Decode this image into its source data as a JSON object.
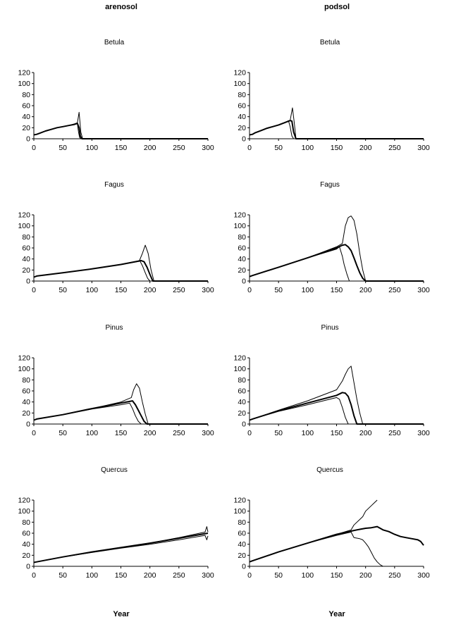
{
  "columns": [
    {
      "key": "arenosol",
      "title": "arenosol",
      "xlabel": "Year"
    },
    {
      "key": "podsol",
      "title": "podsol",
      "xlabel": "Year"
    }
  ],
  "chart_data": [
    {
      "type": "line",
      "soil": "arenosol",
      "title": "Betula",
      "xlabel": "Year",
      "ylabel": "",
      "xlim": [
        0,
        300
      ],
      "ylim": [
        0,
        120
      ],
      "xticks": [
        0,
        50,
        100,
        150,
        200,
        250,
        300
      ],
      "yticks": [
        0,
        20,
        40,
        60,
        80,
        100,
        120
      ],
      "grid": false,
      "legend": "none",
      "series": [
        {
          "x": [
            0,
            5,
            10,
            20,
            30,
            40,
            50,
            60,
            70,
            75,
            78,
            81,
            84,
            90,
            300
          ],
          "y": [
            7,
            8,
            10,
            14,
            17,
            20,
            22,
            24,
            27,
            29,
            48,
            12,
            0,
            0,
            0
          ]
        },
        {
          "x": [
            0,
            5,
            10,
            20,
            30,
            40,
            50,
            60,
            70,
            75,
            78,
            80,
            83,
            90,
            300
          ],
          "y": [
            7,
            8,
            10,
            14,
            17,
            20,
            22,
            24,
            26,
            28,
            20,
            5,
            0,
            0,
            0
          ]
        },
        {
          "x": [
            0,
            5,
            10,
            20,
            30,
            40,
            50,
            60,
            70,
            75,
            77,
            79,
            82,
            90,
            300
          ],
          "y": [
            7,
            8,
            10,
            14,
            17,
            20,
            22,
            24,
            26,
            27,
            12,
            2,
            0,
            0,
            0
          ]
        }
      ]
    },
    {
      "type": "line",
      "soil": "podsol",
      "title": "Betula",
      "xlabel": "Year",
      "ylabel": "",
      "xlim": [
        0,
        300
      ],
      "ylim": [
        0,
        120
      ],
      "xticks": [
        0,
        50,
        100,
        150,
        200,
        250,
        300
      ],
      "yticks": [
        0,
        20,
        40,
        60,
        80,
        100,
        120
      ],
      "grid": false,
      "legend": "none",
      "series": [
        {
          "x": [
            0,
            5,
            10,
            20,
            30,
            40,
            50,
            60,
            65,
            70,
            74,
            77,
            80,
            85,
            300
          ],
          "y": [
            7,
            8,
            11,
            15,
            19,
            22,
            25,
            29,
            31,
            33,
            56,
            30,
            0,
            0,
            0
          ]
        },
        {
          "x": [
            0,
            5,
            10,
            20,
            30,
            40,
            50,
            60,
            65,
            70,
            73,
            76,
            80,
            85,
            300
          ],
          "y": [
            7,
            8,
            11,
            15,
            19,
            22,
            25,
            29,
            31,
            33,
            32,
            12,
            0,
            0,
            0
          ]
        },
        {
          "x": [
            0,
            5,
            10,
            20,
            30,
            40,
            50,
            60,
            65,
            67,
            70,
            73,
            76,
            85,
            300
          ],
          "y": [
            7,
            8,
            11,
            15,
            19,
            22,
            25,
            29,
            31,
            33,
            22,
            5,
            0,
            0,
            0
          ]
        }
      ]
    },
    {
      "type": "line",
      "soil": "arenosol",
      "title": "Fagus",
      "xlabel": "Year",
      "ylabel": "",
      "xlim": [
        0,
        300
      ],
      "ylim": [
        0,
        120
      ],
      "xticks": [
        0,
        50,
        100,
        150,
        200,
        250,
        300
      ],
      "yticks": [
        0,
        20,
        40,
        60,
        80,
        100,
        120
      ],
      "grid": false,
      "legend": "none",
      "series": [
        {
          "x": [
            0,
            5,
            50,
            100,
            150,
            182,
            187,
            192,
            197,
            202,
            207,
            300
          ],
          "y": [
            7,
            9,
            15,
            22,
            30,
            37,
            50,
            65,
            50,
            20,
            0,
            0
          ]
        },
        {
          "x": [
            0,
            5,
            50,
            100,
            150,
            185,
            190,
            195,
            200,
            205,
            300
          ],
          "y": [
            7,
            9,
            15,
            22,
            30,
            37,
            35,
            25,
            12,
            0,
            0
          ]
        },
        {
          "x": [
            0,
            5,
            50,
            100,
            150,
            183,
            187,
            192,
            196,
            200,
            300
          ],
          "y": [
            7,
            9,
            15,
            22,
            30,
            36,
            28,
            15,
            5,
            0,
            0
          ]
        }
      ]
    },
    {
      "type": "line",
      "soil": "podsol",
      "title": "Fagus",
      "xlabel": "Year",
      "ylabel": "",
      "xlim": [
        0,
        300
      ],
      "ylim": [
        0,
        120
      ],
      "xticks": [
        0,
        50,
        100,
        150,
        200,
        250,
        300
      ],
      "yticks": [
        0,
        20,
        40,
        60,
        80,
        100,
        120
      ],
      "grid": false,
      "legend": "none",
      "series": [
        {
          "x": [
            0,
            5,
            50,
            100,
            150,
            160,
            165,
            170,
            175,
            180,
            185,
            190,
            195,
            200,
            300
          ],
          "y": [
            8,
            10,
            25,
            42,
            62,
            68,
            100,
            115,
            118,
            110,
            85,
            50,
            20,
            0,
            0
          ]
        },
        {
          "x": [
            0,
            5,
            50,
            100,
            150,
            160,
            165,
            170,
            175,
            180,
            185,
            190,
            195,
            200,
            300
          ],
          "y": [
            8,
            10,
            25,
            42,
            60,
            65,
            66,
            62,
            55,
            42,
            28,
            15,
            5,
            0,
            0
          ]
        },
        {
          "x": [
            0,
            5,
            50,
            100,
            150,
            155,
            160,
            163,
            168,
            172,
            300
          ],
          "y": [
            8,
            10,
            25,
            42,
            58,
            62,
            45,
            30,
            12,
            0,
            0
          ]
        }
      ]
    },
    {
      "type": "line",
      "soil": "arenosol",
      "title": "Pinus",
      "xlabel": "Year",
      "ylabel": "",
      "xlim": [
        0,
        300
      ],
      "ylim": [
        0,
        120
      ],
      "xticks": [
        0,
        50,
        100,
        150,
        200,
        250,
        300
      ],
      "yticks": [
        0,
        20,
        40,
        60,
        80,
        100,
        120
      ],
      "grid": false,
      "legend": "none",
      "series": [
        {
          "x": [
            0,
            5,
            50,
            100,
            150,
            168,
            172,
            177,
            182,
            187,
            192,
            197,
            300
          ],
          "y": [
            7,
            9,
            17,
            28,
            40,
            48,
            62,
            73,
            65,
            40,
            18,
            0,
            0
          ]
        },
        {
          "x": [
            0,
            5,
            50,
            100,
            150,
            170,
            175,
            180,
            185,
            190,
            195,
            300
          ],
          "y": [
            7,
            9,
            17,
            28,
            38,
            42,
            35,
            25,
            15,
            5,
            0,
            0
          ]
        },
        {
          "x": [
            0,
            5,
            50,
            100,
            150,
            165,
            170,
            175,
            180,
            185,
            300
          ],
          "y": [
            7,
            9,
            17,
            27,
            35,
            38,
            28,
            15,
            5,
            0,
            0
          ]
        }
      ]
    },
    {
      "type": "line",
      "soil": "podsol",
      "title": "Pinus",
      "xlabel": "Year",
      "ylabel": "",
      "xlim": [
        0,
        300
      ],
      "ylim": [
        0,
        120
      ],
      "xticks": [
        0,
        50,
        100,
        150,
        200,
        250,
        300
      ],
      "yticks": [
        0,
        20,
        40,
        60,
        80,
        100,
        120
      ],
      "grid": false,
      "legend": "none",
      "series": [
        {
          "x": [
            0,
            5,
            50,
            100,
            150,
            160,
            165,
            170,
            175,
            180,
            185,
            190,
            195,
            300
          ],
          "y": [
            7,
            9,
            25,
            42,
            62,
            78,
            90,
            100,
            105,
            75,
            45,
            20,
            0,
            0
          ]
        },
        {
          "x": [
            0,
            5,
            50,
            100,
            150,
            160,
            165,
            170,
            175,
            180,
            185,
            300
          ],
          "y": [
            7,
            9,
            24,
            38,
            52,
            57,
            56,
            50,
            35,
            15,
            0,
            0
          ]
        },
        {
          "x": [
            0,
            5,
            50,
            100,
            150,
            155,
            160,
            165,
            170,
            300
          ],
          "y": [
            7,
            9,
            23,
            35,
            48,
            45,
            30,
            12,
            0,
            0
          ]
        }
      ]
    },
    {
      "type": "line",
      "soil": "arenosol",
      "title": "Quercus",
      "xlabel": "Year",
      "ylabel": "",
      "xlim": [
        0,
        300
      ],
      "ylim": [
        0,
        120
      ],
      "xticks": [
        0,
        50,
        100,
        150,
        200,
        250,
        300
      ],
      "yticks": [
        0,
        20,
        40,
        60,
        80,
        100,
        120
      ],
      "grid": false,
      "legend": "none",
      "series": [
        {
          "x": [
            0,
            5,
            50,
            100,
            150,
            200,
            250,
            295,
            298,
            300
          ],
          "y": [
            7,
            8,
            17,
            26,
            34,
            42,
            52,
            62,
            72,
            62
          ]
        },
        {
          "x": [
            0,
            5,
            50,
            100,
            150,
            200,
            250,
            300
          ],
          "y": [
            7,
            8,
            17,
            26,
            34,
            42,
            51,
            60
          ]
        },
        {
          "x": [
            0,
            5,
            50,
            100,
            150,
            200,
            250,
            295,
            298,
            300
          ],
          "y": [
            7,
            8,
            17,
            25,
            33,
            40,
            48,
            56,
            48,
            55
          ]
        }
      ]
    },
    {
      "type": "line",
      "soil": "podsol",
      "title": "Quercus",
      "xlabel": "Year",
      "ylabel": "",
      "xlim": [
        0,
        300
      ],
      "ylim": [
        0,
        120
      ],
      "xticks": [
        0,
        50,
        100,
        150,
        200,
        250,
        300
      ],
      "yticks": [
        0,
        20,
        40,
        60,
        80,
        100,
        120
      ],
      "grid": false,
      "legend": "none",
      "series": [
        {
          "x": [
            0,
            5,
            50,
            100,
            150,
            175,
            180,
            195,
            200,
            210,
            215,
            220
          ],
          "y": [
            8,
            10,
            26,
            42,
            58,
            66,
            75,
            90,
            100,
            110,
            115,
            120
          ]
        },
        {
          "x": [
            0,
            5,
            50,
            100,
            150,
            180,
            190,
            200,
            210,
            220,
            230,
            240,
            250,
            260,
            270,
            280,
            290,
            295,
            300
          ],
          "y": [
            8,
            10,
            26,
            42,
            58,
            65,
            67,
            69,
            70,
            72,
            66,
            63,
            58,
            54,
            52,
            50,
            48,
            45,
            38
          ]
        },
        {
          "x": [
            0,
            5,
            50,
            100,
            150,
            175,
            180,
            190,
            195,
            200,
            205,
            210,
            215,
            220,
            225,
            230
          ],
          "y": [
            8,
            10,
            26,
            42,
            56,
            62,
            52,
            50,
            48,
            42,
            35,
            25,
            15,
            8,
            3,
            0
          ]
        }
      ]
    }
  ]
}
